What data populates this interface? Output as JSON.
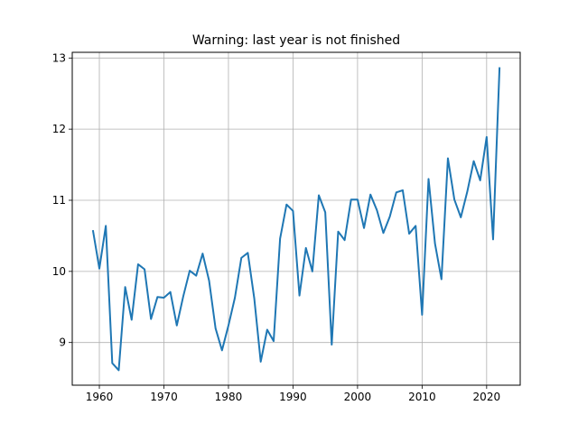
{
  "chart_data": {
    "type": "line",
    "title": "Warning: last year is not finished",
    "xlabel": "",
    "ylabel": "",
    "xlim": [
      1955.8,
      2025.2
    ],
    "ylim": [
      8.4,
      13.08
    ],
    "grid": true,
    "line_color": "#1f77b4",
    "x_ticks": [
      1960,
      1970,
      1980,
      1990,
      2000,
      2010,
      2020
    ],
    "y_ticks": [
      9,
      10,
      11,
      12,
      13
    ],
    "series": [
      {
        "x": [
          1959,
          1960,
          1961,
          1962,
          1963,
          1964,
          1965,
          1966,
          1967,
          1968,
          1969,
          1970,
          1971,
          1972,
          1973,
          1974,
          1975,
          1976,
          1977,
          1978,
          1979,
          1980,
          1981,
          1982,
          1983,
          1984,
          1985,
          1986,
          1987,
          1988,
          1989,
          1990,
          1991,
          1992,
          1993,
          1994,
          1995,
          1996,
          1997,
          1998,
          1999,
          2000,
          2001,
          2002,
          2003,
          2004,
          2005,
          2006,
          2007,
          2008,
          2009,
          2010,
          2011,
          2012,
          2013,
          2014,
          2015,
          2016,
          2017,
          2018,
          2019,
          2020,
          2021,
          2022
        ],
        "values": [
          10.58,
          10.04,
          10.64,
          8.71,
          8.61,
          9.78,
          9.32,
          10.1,
          10.03,
          9.33,
          9.64,
          9.63,
          9.71,
          9.24,
          9.65,
          10.01,
          9.94,
          10.25,
          9.87,
          9.2,
          8.89,
          9.24,
          9.63,
          10.19,
          10.26,
          9.62,
          8.73,
          9.18,
          9.02,
          10.46,
          10.94,
          10.85,
          9.66,
          10.33,
          10.0,
          11.07,
          10.83,
          8.97,
          10.56,
          10.44,
          11.01,
          11.01,
          10.61,
          11.08,
          10.86,
          10.54,
          10.77,
          11.11,
          11.14,
          10.53,
          10.64,
          9.39,
          11.3,
          10.39,
          9.89,
          11.59,
          11.01,
          10.76,
          11.12,
          11.55,
          11.28,
          11.89,
          10.45,
          12.87
        ]
      }
    ]
  }
}
